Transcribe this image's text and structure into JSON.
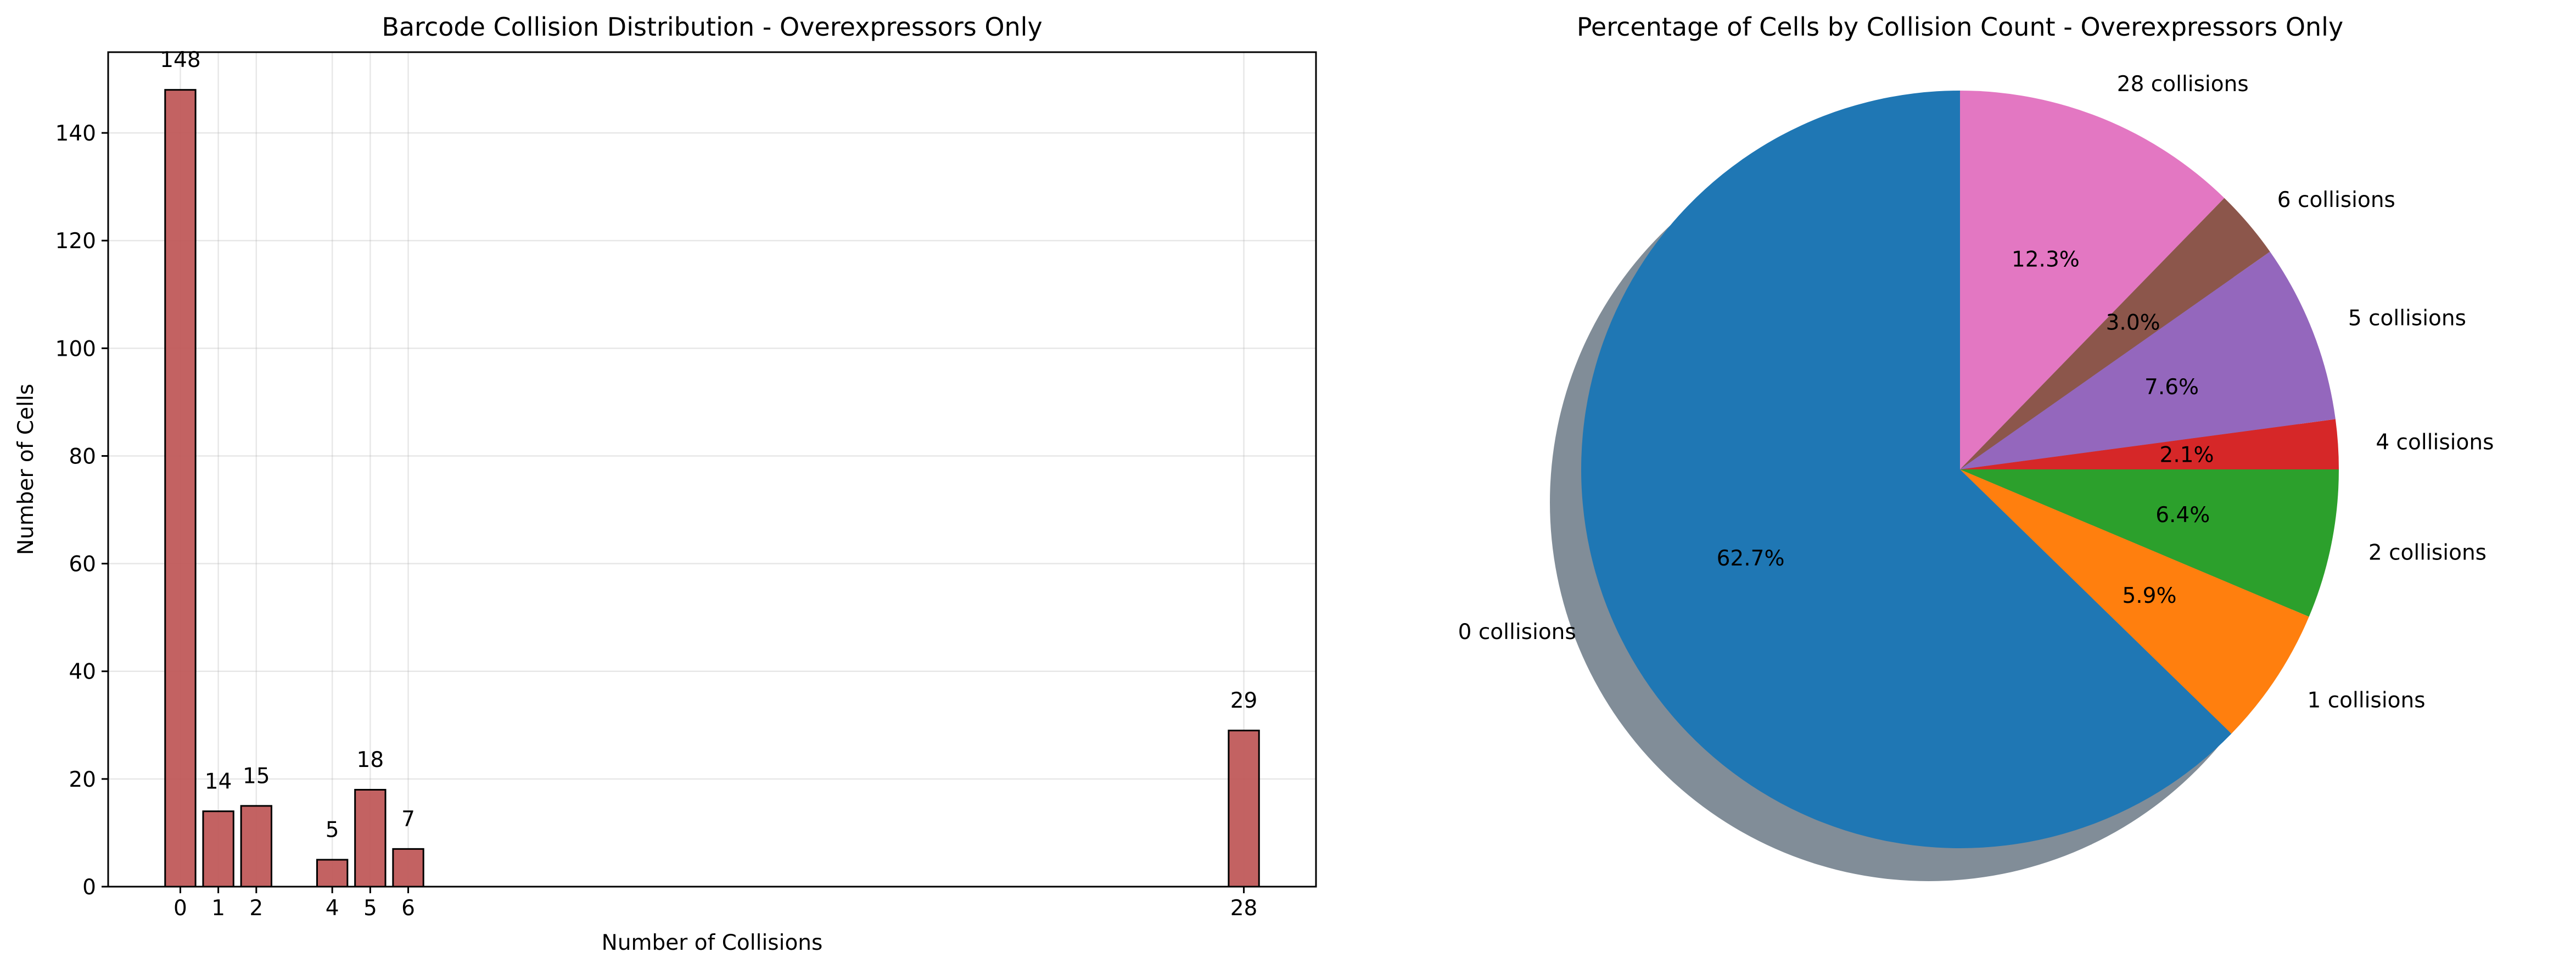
{
  "chart_data": [
    {
      "type": "bar",
      "title": "Barcode Collision Distribution - Overexpressors Only",
      "xlabel": "Number of Collisions",
      "ylabel": "Number of Cells",
      "x": [
        0,
        1,
        2,
        4,
        5,
        6,
        28
      ],
      "values": [
        148,
        14,
        15,
        5,
        18,
        7,
        29
      ],
      "data_labels": [
        "148",
        "14",
        "15",
        "5",
        "18",
        "7",
        "29"
      ],
      "xticks": [
        "0",
        "1",
        "2",
        "4",
        "5",
        "6",
        "28"
      ],
      "yticks": [
        "0",
        "20",
        "40",
        "60",
        "80",
        "100",
        "120",
        "140"
      ],
      "xlim": [
        -1.9,
        29.9
      ],
      "ylim": [
        0,
        155
      ],
      "grid": true,
      "bar_color": "#c05a5a"
    },
    {
      "type": "pie",
      "title": "Percentage of Cells by Collision Count - Overexpressors Only",
      "labels": [
        "0 collisions",
        "1 collisions",
        "2 collisions",
        "4 collisions",
        "5 collisions",
        "6 collisions",
        "28 collisions"
      ],
      "values": [
        148,
        14,
        15,
        5,
        18,
        7,
        29
      ],
      "percent_labels": [
        "62.7%",
        "5.9%",
        "6.4%",
        "2.1%",
        "7.6%",
        "3.0%",
        "12.3%"
      ],
      "colors": [
        "#1f77b4",
        "#ff7f0e",
        "#2ca02c",
        "#d62728",
        "#9467bd",
        "#8c564b",
        "#e377c2"
      ],
      "start_angle_deg": 90,
      "direction": "counterclockwise",
      "shadow": true
    }
  ]
}
